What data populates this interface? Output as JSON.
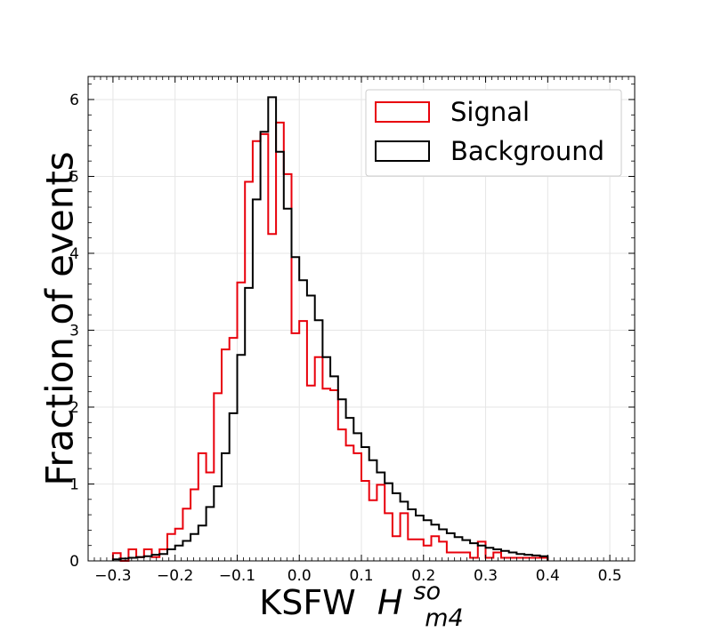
{
  "chart_data": {
    "type": "histogram",
    "xlabel": "KSFW",
    "xlabel_math": "H",
    "xlabel_sup": "so",
    "xlabel_sub": "m4",
    "ylabel": "Fraction of events",
    "xlim": [
      -0.34,
      0.54
    ],
    "ylim": [
      0,
      6.3
    ],
    "grid": true,
    "legend_position": "top-right",
    "x_ticks": [
      -0.3,
      -0.2,
      -0.1,
      0.0,
      0.1,
      0.2,
      0.3,
      0.4,
      0.5
    ],
    "x_tick_labels": [
      "−0.3",
      "−0.2",
      "−0.1",
      "0.0",
      "0.1",
      "0.2",
      "0.3",
      "0.4",
      "0.5"
    ],
    "y_ticks": [
      0,
      1,
      2,
      3,
      4,
      5,
      6
    ],
    "y_tick_labels": [
      "0",
      "1",
      "2",
      "3",
      "4",
      "5",
      "6"
    ],
    "bin_start": -0.3,
    "bin_width": 0.0125,
    "series": [
      {
        "name": "Signal",
        "color": "#e8000b",
        "values": [
          0.1,
          0.0,
          0.15,
          0.05,
          0.15,
          0.05,
          0.15,
          0.35,
          0.42,
          0.68,
          0.93,
          1.4,
          1.15,
          2.18,
          2.75,
          2.9,
          3.62,
          4.93,
          5.46,
          5.55,
          4.25,
          5.7,
          5.03,
          2.96,
          3.12,
          2.28,
          2.65,
          2.24,
          2.22,
          1.71,
          1.5,
          1.4,
          1.04,
          0.79,
          0.99,
          0.62,
          0.32,
          0.62,
          0.28,
          0.28,
          0.2,
          0.32,
          0.25,
          0.11,
          0.11,
          0.11,
          0.04,
          0.25,
          0.04,
          0.11,
          0.04,
          0.04,
          0.04,
          0.04,
          0.04,
          0.04
        ]
      },
      {
        "name": "Background",
        "color": "#000000",
        "values": [
          0.02,
          0.03,
          0.04,
          0.05,
          0.06,
          0.08,
          0.09,
          0.15,
          0.2,
          0.26,
          0.35,
          0.46,
          0.7,
          0.97,
          1.4,
          1.92,
          2.68,
          3.55,
          4.7,
          5.58,
          6.03,
          5.32,
          4.58,
          3.95,
          3.65,
          3.45,
          3.13,
          2.65,
          2.4,
          2.1,
          1.86,
          1.66,
          1.48,
          1.31,
          1.15,
          1.01,
          0.88,
          0.77,
          0.67,
          0.59,
          0.53,
          0.47,
          0.41,
          0.36,
          0.31,
          0.27,
          0.23,
          0.2,
          0.17,
          0.15,
          0.13,
          0.11,
          0.09,
          0.08,
          0.07,
          0.06
        ]
      }
    ]
  }
}
